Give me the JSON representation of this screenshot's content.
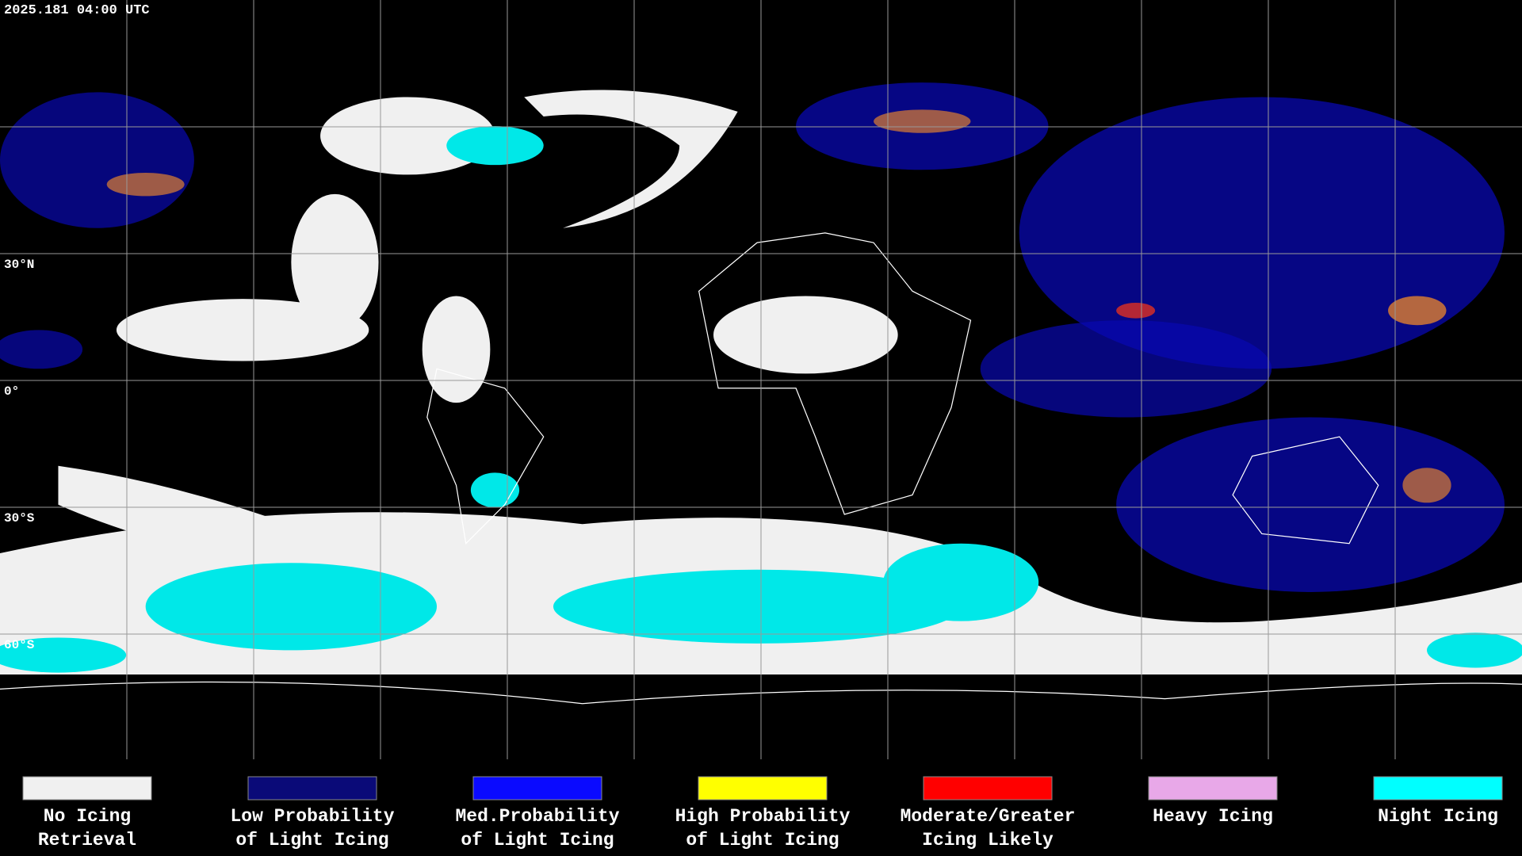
{
  "timestamp": "2025.181 04:00 UTC",
  "latitude_labels": [
    "30°N",
    "0°",
    "30°S",
    "60°S"
  ],
  "legend": [
    {
      "color": "#f0f0f0",
      "lines": [
        "No Icing",
        "Retrieval"
      ]
    },
    {
      "color": "#0a0a78",
      "lines": [
        "Low Probability",
        "of Light Icing"
      ]
    },
    {
      "color": "#0a0aff",
      "lines": [
        "Med.Probability",
        "of Light Icing"
      ]
    },
    {
      "color": "#ffff00",
      "lines": [
        "High Probability",
        "of Light Icing"
      ]
    },
    {
      "color": "#ff0000",
      "lines": [
        "Moderate/Greater",
        "Icing Likely"
      ]
    },
    {
      "color": "#e8a8e8",
      "lines": [
        "Heavy Icing"
      ]
    },
    {
      "color": "#00ffff",
      "lines": [
        "Night Icing"
      ]
    }
  ]
}
